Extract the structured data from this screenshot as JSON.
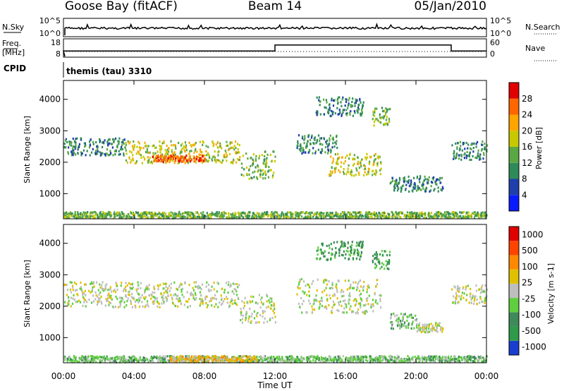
{
  "header": {
    "station": "Goose Bay (fitACF)",
    "beam": "Beam 14",
    "date": "05/Jan/2010"
  },
  "noise_panel": {
    "left_label": "N.Sky",
    "right_label": "N.Search",
    "left_ticks": [
      "10^5",
      "10^0"
    ],
    "right_ticks": [
      "10^5",
      "10^0"
    ]
  },
  "freq_panel": {
    "left_label_1": "Freq.",
    "left_label_2": "[MHz]",
    "right_label": "Nave",
    "left_ticks": [
      "18",
      "8"
    ],
    "right_ticks": [
      "60",
      "0"
    ],
    "nave_steps": [
      {
        "t_start": 0,
        "t_end": 12,
        "value": 20
      },
      {
        "t_start": 12,
        "t_end": 22,
        "value": 46
      },
      {
        "t_start": 22,
        "t_end": 24,
        "value": 20
      }
    ]
  },
  "cpid": {
    "label": "CPID",
    "text": "themis (tau) 3310"
  },
  "time_axis": {
    "title": "Time UT",
    "ticks": [
      "00:00",
      "04:00",
      "08:00",
      "12:00",
      "16:00",
      "20:00",
      "00:00"
    ],
    "range_hours": [
      0,
      24
    ]
  },
  "chart_data": [
    {
      "type": "heatmap",
      "name": "Power",
      "ylabel": "Slant Range [km]",
      "yticks": [
        "1000",
        "2000",
        "3000",
        "4000"
      ],
      "ylim": [
        200,
        4600
      ],
      "colorbar": {
        "title": "Power [dB]",
        "ticks": [
          "4",
          "8",
          "12",
          "16",
          "20",
          "24",
          "28"
        ],
        "colors": [
          "#0a1cff",
          "#1f3faa",
          "#2f8a5a",
          "#5aa844",
          "#c8c800",
          "#ffa500",
          "#ff6600",
          "#e00000"
        ]
      },
      "bands": [
        {
          "t_start": 0.0,
          "t_end": 3.5,
          "r_low": 2250,
          "r_high": 2800,
          "level": 2
        },
        {
          "t_start": 3.5,
          "t_end": 10.0,
          "r_low": 2000,
          "r_high": 2700,
          "level": 4
        },
        {
          "t_start": 5.0,
          "t_end": 8.0,
          "r_low": 2050,
          "r_high": 2250,
          "level": 6
        },
        {
          "t_start": 10.0,
          "t_end": 12.0,
          "r_low": 1500,
          "r_high": 2400,
          "level": 3
        },
        {
          "t_start": 13.2,
          "t_end": 15.5,
          "r_low": 2300,
          "r_high": 2900,
          "level": 2
        },
        {
          "t_start": 15.0,
          "t_end": 18.0,
          "r_low": 1600,
          "r_high": 2300,
          "level": 4
        },
        {
          "t_start": 14.3,
          "t_end": 17.0,
          "r_low": 3500,
          "r_high": 4100,
          "level": 2
        },
        {
          "t_start": 17.5,
          "t_end": 18.5,
          "r_low": 3200,
          "r_high": 3800,
          "level": 3
        },
        {
          "t_start": 18.5,
          "t_end": 21.5,
          "r_low": 1100,
          "r_high": 1600,
          "level": 2
        },
        {
          "t_start": 22.0,
          "t_end": 24.0,
          "r_low": 2100,
          "r_high": 2700,
          "level": 2
        },
        {
          "t_start": 0.0,
          "t_end": 24.0,
          "r_low": 250,
          "r_high": 450,
          "level": 3
        }
      ]
    },
    {
      "type": "heatmap",
      "name": "Velocity",
      "ylabel": "Slant Range [km]",
      "yticks": [
        "1000",
        "2000",
        "3000",
        "4000"
      ],
      "ylim": [
        200,
        4600
      ],
      "colorbar": {
        "title": "Velocity [m s-1]",
        "ticks": [
          "1000",
          "500",
          "100",
          "25",
          "-25",
          "-100",
          "-500",
          "-1000"
        ],
        "colors": [
          "#1a3fcf",
          "#2f9a4a",
          "#3f8a5a",
          "#5fcf3f",
          "#bebebe",
          "#e0c000",
          "#ff8800",
          "#ff4400",
          "#e00000"
        ]
      },
      "bands": [
        {
          "t_start": 0.0,
          "t_end": 10.0,
          "r_low": 2000,
          "r_high": 2800,
          "level": 4
        },
        {
          "t_start": 10.0,
          "t_end": 12.0,
          "r_low": 1500,
          "r_high": 2400,
          "level": 4
        },
        {
          "t_start": 13.2,
          "t_end": 18.0,
          "r_low": 1800,
          "r_high": 2900,
          "level": 4
        },
        {
          "t_start": 14.3,
          "t_end": 17.0,
          "r_low": 3500,
          "r_high": 4100,
          "level": 2
        },
        {
          "t_start": 17.5,
          "t_end": 18.5,
          "r_low": 3200,
          "r_high": 3800,
          "level": 2
        },
        {
          "t_start": 18.5,
          "t_end": 20.0,
          "r_low": 1300,
          "r_high": 1800,
          "level": 3
        },
        {
          "t_start": 20.0,
          "t_end": 21.5,
          "r_low": 1200,
          "r_high": 1500,
          "level": 4
        },
        {
          "t_start": 22.0,
          "t_end": 24.0,
          "r_low": 2100,
          "r_high": 2700,
          "level": 4
        },
        {
          "t_start": 0.0,
          "t_end": 24.0,
          "r_low": 250,
          "r_high": 450,
          "level": 3
        },
        {
          "t_start": 6.0,
          "t_end": 11.0,
          "r_low": 250,
          "r_high": 450,
          "level": 5
        }
      ]
    }
  ]
}
